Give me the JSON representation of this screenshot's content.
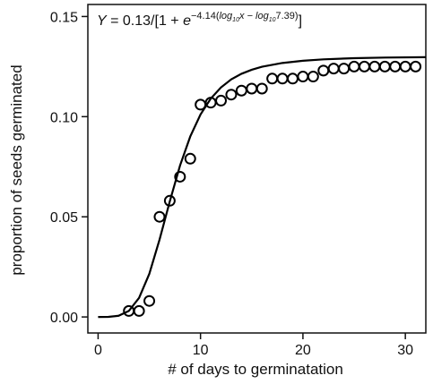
{
  "chart_data": {
    "type": "scatter",
    "annotation": [
      "Y",
      " = 0.13/[1 + ",
      "e",
      "−4.14(",
      "log",
      "10",
      "x − ",
      "log",
      "10",
      "7.39)",
      "]"
    ],
    "xlabel": "# of days to germinatation",
    "ylabel": "proportion of seeds germinated",
    "xlim": [
      -1,
      32
    ],
    "ylim": [
      -0.008,
      0.156
    ],
    "xticks": [
      0,
      10,
      20,
      30
    ],
    "yticks": [
      {
        "value": 0,
        "label": "0.00"
      },
      {
        "value": 0.05,
        "label": "0.05"
      },
      {
        "value": 0.1,
        "label": "0.10"
      },
      {
        "value": 0.15,
        "label": "0.15"
      }
    ],
    "series": [
      {
        "type": "scatter",
        "color": "#000000",
        "x": [
          3,
          4,
          5,
          6,
          7,
          8,
          9,
          10,
          11,
          12,
          13,
          14,
          15,
          16,
          17,
          18,
          19,
          20,
          21,
          22,
          23,
          24,
          25,
          26,
          27,
          28,
          29,
          30,
          31
        ],
        "values": [
          0.003,
          0.003,
          0.008,
          0.05,
          0.058,
          0.07,
          0.079,
          0.106,
          0.107,
          0.108,
          0.111,
          0.113,
          0.114,
          0.114,
          0.119,
          0.119,
          0.119,
          0.12,
          0.12,
          0.123,
          0.124,
          0.124,
          0.125,
          0.125,
          0.125,
          0.125,
          0.125,
          0.125,
          0.125
        ]
      },
      {
        "type": "line",
        "color": "#000000",
        "x": [
          0,
          1,
          2,
          3,
          4,
          5,
          6,
          7,
          8,
          9,
          10,
          11,
          12,
          13,
          14,
          15,
          16,
          18,
          20,
          22,
          25,
          28,
          32
        ],
        "values": [
          0,
          3e-05,
          0.0006,
          0.003,
          0.0095,
          0.0215,
          0.0386,
          0.0577,
          0.0756,
          0.0901,
          0.1011,
          0.109,
          0.1146,
          0.1186,
          0.1214,
          0.1234,
          0.1249,
          0.1268,
          0.1279,
          0.1286,
          0.1292,
          0.1295,
          0.1297
        ]
      }
    ]
  }
}
